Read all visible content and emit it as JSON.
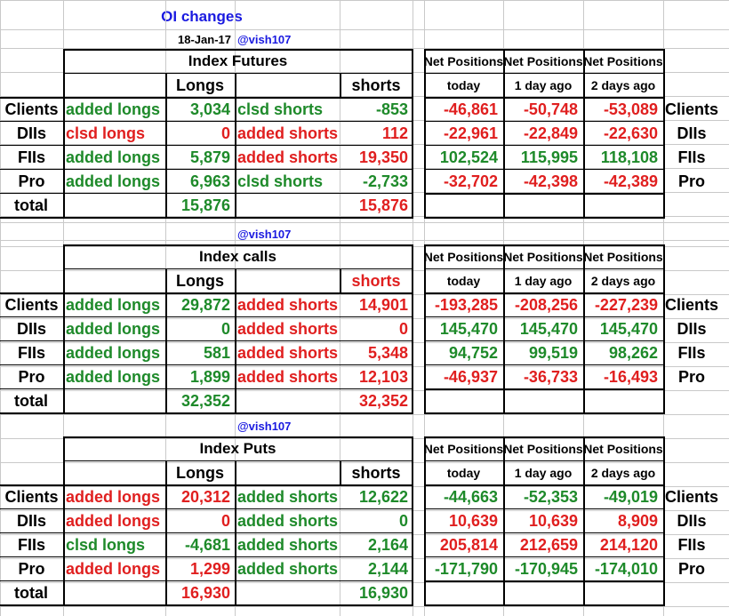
{
  "header": {
    "title": "OI changes",
    "date": "18-Jan-17",
    "handle": "@vish107",
    "colors": {
      "positive": "#1e8a2a",
      "negative": "#e01f1f",
      "title": "#1a1ae0",
      "grid": "#c9c9c9"
    }
  },
  "sections": [
    {
      "handle": "",
      "title": "Index Futures",
      "longs_header": "Longs",
      "shorts_header": "shorts",
      "shorts_header_color": "black",
      "net_header": [
        "Net Positions",
        "Net Positions",
        "Net Positions"
      ],
      "net_sub": [
        "today",
        "1 day ago",
        "2 days ago"
      ],
      "rows": [
        {
          "name": "Clients",
          "long_action": "added longs",
          "long_action_color": "green",
          "long_val": "3,034",
          "long_val_color": "green",
          "short_action": "clsd shorts",
          "short_action_color": "green",
          "short_val": "-853",
          "short_val_color": "green",
          "net": [
            "-46,861",
            "-50,748",
            "-53,089"
          ],
          "net_color": "red",
          "right_name": "Clients"
        },
        {
          "name": "DIIs",
          "long_action": "clsd longs",
          "long_action_color": "red",
          "long_val": "0",
          "long_val_color": "red",
          "short_action": "added shorts",
          "short_action_color": "red",
          "short_val": "112",
          "short_val_color": "red",
          "net": [
            "-22,961",
            "-22,849",
            "-22,630"
          ],
          "net_color": "red",
          "right_name": "DIIs"
        },
        {
          "name": "FIIs",
          "long_action": "added longs",
          "long_action_color": "green",
          "long_val": "5,879",
          "long_val_color": "green",
          "short_action": "added shorts",
          "short_action_color": "red",
          "short_val": "19,350",
          "short_val_color": "red",
          "net": [
            "102,524",
            "115,995",
            "118,108"
          ],
          "net_color": "green",
          "right_name": "FIIs"
        },
        {
          "name": "Pro",
          "long_action": "added longs",
          "long_action_color": "green",
          "long_val": "6,963",
          "long_val_color": "green",
          "short_action": "clsd shorts",
          "short_action_color": "green",
          "short_val": "-2,733",
          "short_val_color": "green",
          "net": [
            "-32,702",
            "-42,398",
            "-42,389"
          ],
          "net_color": "red",
          "right_name": "Pro"
        }
      ],
      "total_label": "total",
      "total_longs": "15,876",
      "total_longs_color": "green",
      "total_shorts": "15,876",
      "total_shorts_color": "red"
    },
    {
      "handle": "@vish107",
      "title": "Index calls",
      "longs_header": "Longs",
      "shorts_header": "shorts",
      "shorts_header_color": "red",
      "net_header": [
        "Net Positions",
        "Net Positions",
        "Net Positions"
      ],
      "net_sub": [
        "today",
        "1 day ago",
        "2 days ago"
      ],
      "rows": [
        {
          "name": "Clients",
          "long_action": "added longs",
          "long_action_color": "green",
          "long_val": "29,872",
          "long_val_color": "green",
          "short_action": "added shorts",
          "short_action_color": "red",
          "short_val": "14,901",
          "short_val_color": "red",
          "net": [
            "-193,285",
            "-208,256",
            "-227,239"
          ],
          "net_color": "red",
          "right_name": "Clients"
        },
        {
          "name": "DIIs",
          "long_action": "added longs",
          "long_action_color": "green",
          "long_val": "0",
          "long_val_color": "green",
          "short_action": "added shorts",
          "short_action_color": "red",
          "short_val": "0",
          "short_val_color": "red",
          "net": [
            "145,470",
            "145,470",
            "145,470"
          ],
          "net_color": "green",
          "right_name": "DIIs"
        },
        {
          "name": "FIIs",
          "long_action": "added longs",
          "long_action_color": "green",
          "long_val": "581",
          "long_val_color": "green",
          "short_action": "added shorts",
          "short_action_color": "red",
          "short_val": "5,348",
          "short_val_color": "red",
          "net": [
            "94,752",
            "99,519",
            "98,262"
          ],
          "net_color": "green",
          "right_name": "FIIs"
        },
        {
          "name": "Pro",
          "long_action": "added longs",
          "long_action_color": "green",
          "long_val": "1,899",
          "long_val_color": "green",
          "short_action": "added shorts",
          "short_action_color": "red",
          "short_val": "12,103",
          "short_val_color": "red",
          "net": [
            "-46,937",
            "-36,733",
            "-16,493"
          ],
          "net_color": "red",
          "right_name": "Pro"
        }
      ],
      "total_label": "total",
      "total_longs": "32,352",
      "total_longs_color": "green",
      "total_shorts": "32,352",
      "total_shorts_color": "red"
    },
    {
      "handle": "@vish107",
      "title": "Index Puts",
      "longs_header": "Longs",
      "shorts_header": "shorts",
      "shorts_header_color": "black",
      "net_header": [
        "Net Positions",
        "Net Positions",
        "Net Positions"
      ],
      "net_sub": [
        "today",
        "1 day ago",
        "2 days ago"
      ],
      "rows": [
        {
          "name": "Clients",
          "long_action": "added longs",
          "long_action_color": "red",
          "long_val": "20,312",
          "long_val_color": "red",
          "short_action": "added shorts",
          "short_action_color": "green",
          "short_val": "12,622",
          "short_val_color": "green",
          "net": [
            "-44,663",
            "-52,353",
            "-49,019"
          ],
          "net_color": "green",
          "right_name": "Clients"
        },
        {
          "name": "DIIs",
          "long_action": "added longs",
          "long_action_color": "red",
          "long_val": "0",
          "long_val_color": "red",
          "short_action": "added shorts",
          "short_action_color": "green",
          "short_val": "0",
          "short_val_color": "green",
          "net": [
            "10,639",
            "10,639",
            "8,909"
          ],
          "net_color": "red",
          "right_name": "DIIs"
        },
        {
          "name": "FIIs",
          "long_action": "clsd longs",
          "long_action_color": "green",
          "long_val": "-4,681",
          "long_val_color": "green",
          "short_action": "added shorts",
          "short_action_color": "green",
          "short_val": "2,164",
          "short_val_color": "green",
          "net": [
            "205,814",
            "212,659",
            "214,120"
          ],
          "net_color": "red",
          "right_name": "FIIs"
        },
        {
          "name": "Pro",
          "long_action": "added longs",
          "long_action_color": "red",
          "long_val": "1,299",
          "long_val_color": "red",
          "short_action": "added shorts",
          "short_action_color": "green",
          "short_val": "2,144",
          "short_val_color": "green",
          "net": [
            "-171,790",
            "-170,945",
            "-174,010"
          ],
          "net_color": "green",
          "right_name": "Pro"
        }
      ],
      "total_label": "total",
      "total_longs": "16,930",
      "total_longs_color": "red",
      "total_shorts": "16,930",
      "total_shorts_color": "green"
    }
  ]
}
